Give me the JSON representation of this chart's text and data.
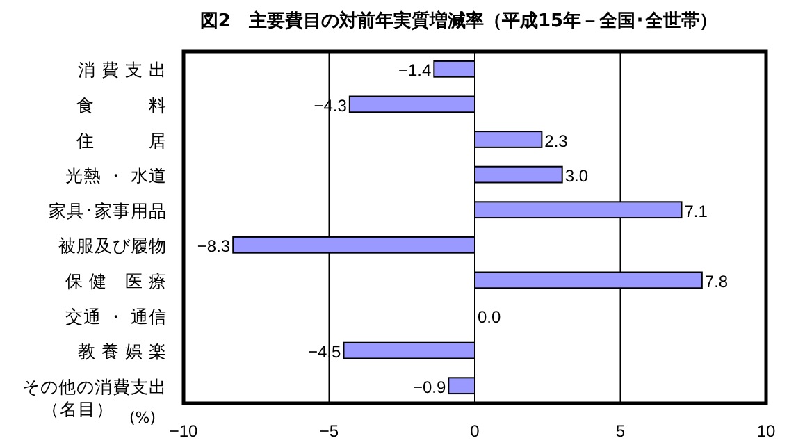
{
  "chart_data": {
    "type": "bar",
    "orientation": "horizontal",
    "title": "図2　主要費目の対前年実質増減率（平成15年－全国･全世帯）",
    "categories": [
      "消 費 支 出",
      "食　　　料",
      "住　　　居",
      "光熱 ・ 水道",
      "家具･家事用品",
      "被服及び履物",
      "保 健　医 療",
      "交通 ・ 通信",
      "教 養 娯 楽",
      "その他の消費支出（名目）"
    ],
    "values": [
      -1.4,
      -4.3,
      2.3,
      3.0,
      7.1,
      -8.3,
      7.8,
      0.0,
      -4.5,
      -0.9
    ],
    "color": "#9999ff",
    "xlabel": "(%)",
    "xlim": [
      -10,
      10
    ],
    "xticks": [
      -10,
      -5,
      0,
      5,
      10
    ],
    "value_labels": [
      "−1.4",
      "−4.3",
      "2.3",
      "3.0",
      "7.1",
      "−8.3",
      "7.8",
      "0.0",
      "−4.5",
      "−0.9"
    ],
    "grid": "x"
  }
}
